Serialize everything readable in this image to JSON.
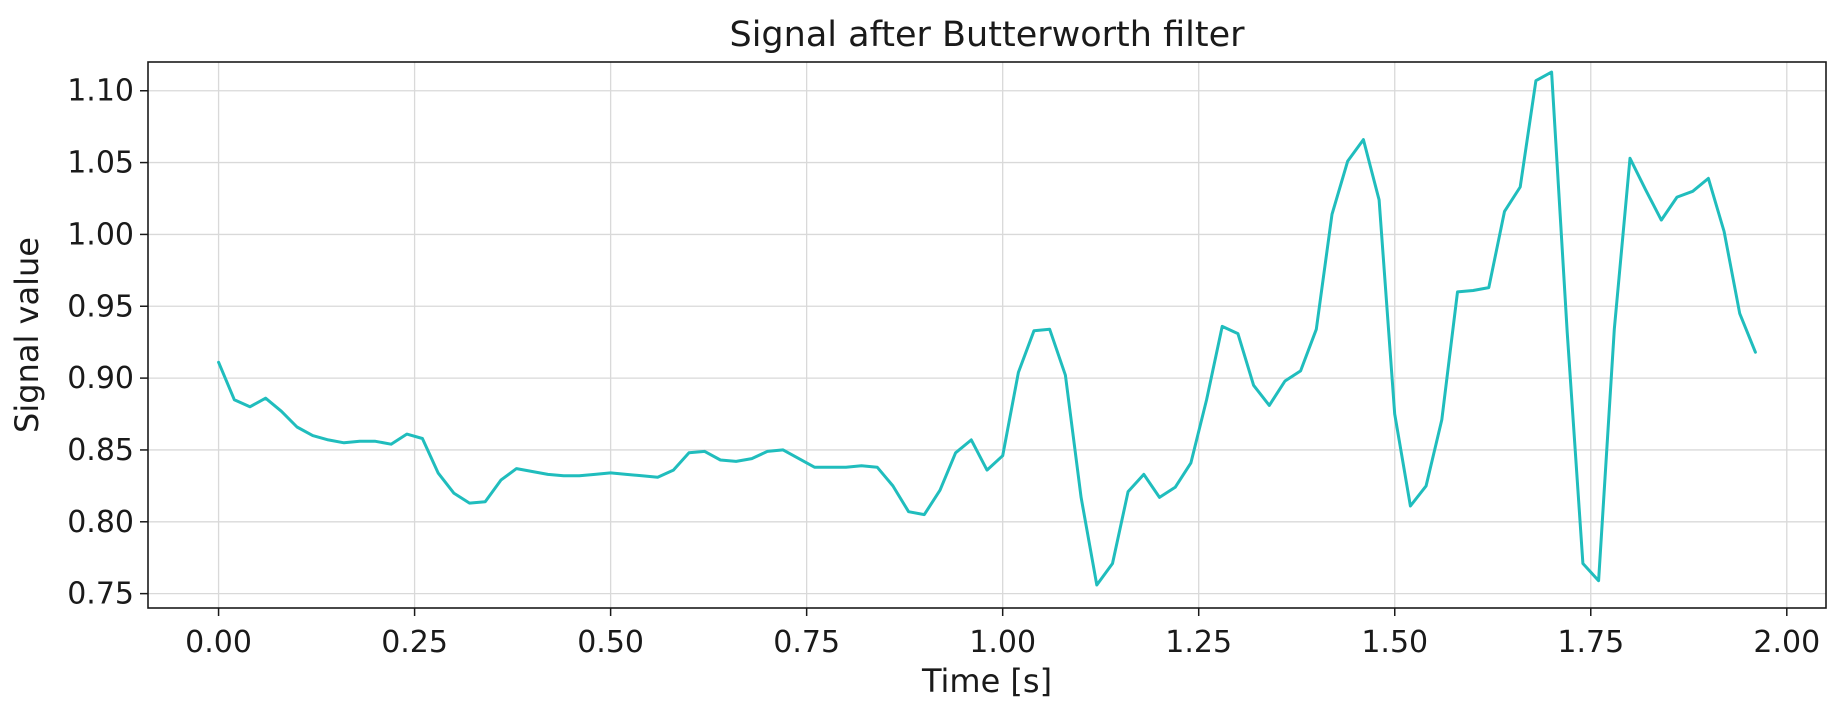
{
  "chart_data": {
    "type": "line",
    "title": "Signal after Butterworth filter",
    "xlabel": "Time [s]",
    "ylabel": "Signal value",
    "xlim": [
      -0.09,
      2.05
    ],
    "ylim": [
      0.74,
      1.12
    ],
    "xticks": [
      0.0,
      0.25,
      0.5,
      0.75,
      1.0,
      1.25,
      1.5,
      1.75,
      2.0
    ],
    "xtick_labels": [
      "0.00",
      "0.25",
      "0.50",
      "0.75",
      "1.00",
      "1.25",
      "1.50",
      "1.75",
      "2.00"
    ],
    "yticks": [
      0.75,
      0.8,
      0.85,
      0.9,
      0.95,
      1.0,
      1.05,
      1.1
    ],
    "ytick_labels": [
      "0.75",
      "0.80",
      "0.85",
      "0.90",
      "0.95",
      "1.00",
      "1.05",
      "1.10"
    ],
    "grid": true,
    "color": "#20bdbd",
    "series": [
      {
        "x": [
          0.0,
          0.02,
          0.04,
          0.06,
          0.08,
          0.1,
          0.12,
          0.14,
          0.16,
          0.18,
          0.2,
          0.22,
          0.24,
          0.26,
          0.28,
          0.3,
          0.32,
          0.34,
          0.36,
          0.38,
          0.4,
          0.42,
          0.44,
          0.46,
          0.48,
          0.5,
          0.52,
          0.54,
          0.56,
          0.58,
          0.6,
          0.62,
          0.64,
          0.66,
          0.68,
          0.7,
          0.72,
          0.74,
          0.76,
          0.78,
          0.8,
          0.82,
          0.84,
          0.86,
          0.88,
          0.9,
          0.92,
          0.94,
          0.96,
          0.98,
          1.0,
          1.02,
          1.04,
          1.06,
          1.08,
          1.1,
          1.12,
          1.14,
          1.16,
          1.18,
          1.2,
          1.22,
          1.24,
          1.26,
          1.28,
          1.3,
          1.32,
          1.34,
          1.36,
          1.38,
          1.4,
          1.42,
          1.44,
          1.46,
          1.48,
          1.5,
          1.52,
          1.54,
          1.56,
          1.58,
          1.6,
          1.62,
          1.64,
          1.66,
          1.68,
          1.7,
          1.72,
          1.74,
          1.76,
          1.78,
          1.8,
          1.82,
          1.84,
          1.86,
          1.88,
          1.9,
          1.92,
          1.94,
          1.96
        ],
        "values": [
          0.911,
          0.885,
          0.88,
          0.886,
          0.877,
          0.866,
          0.86,
          0.857,
          0.855,
          0.856,
          0.856,
          0.854,
          0.861,
          0.858,
          0.834,
          0.82,
          0.813,
          0.814,
          0.829,
          0.837,
          0.835,
          0.833,
          0.832,
          0.832,
          0.833,
          0.834,
          0.833,
          0.832,
          0.831,
          0.836,
          0.848,
          0.849,
          0.843,
          0.842,
          0.844,
          0.849,
          0.85,
          0.844,
          0.838,
          0.838,
          0.838,
          0.839,
          0.838,
          0.825,
          0.807,
          0.805,
          0.822,
          0.848,
          0.857,
          0.836,
          0.846,
          0.904,
          0.933,
          0.934,
          0.902,
          0.817,
          0.756,
          0.771,
          0.821,
          0.833,
          0.817,
          0.824,
          0.841,
          0.885,
          0.936,
          0.931,
          0.895,
          0.881,
          0.898,
          0.905,
          0.934,
          1.014,
          1.051,
          1.066,
          1.024,
          0.875,
          0.811,
          0.825,
          0.871,
          0.96,
          0.961,
          0.963,
          1.016,
          1.033,
          1.107,
          1.113,
          0.932,
          0.771,
          0.759,
          0.934,
          1.053,
          1.031,
          1.01,
          1.026,
          1.03,
          1.039,
          1.002,
          0.945,
          0.918
        ]
      }
    ]
  }
}
